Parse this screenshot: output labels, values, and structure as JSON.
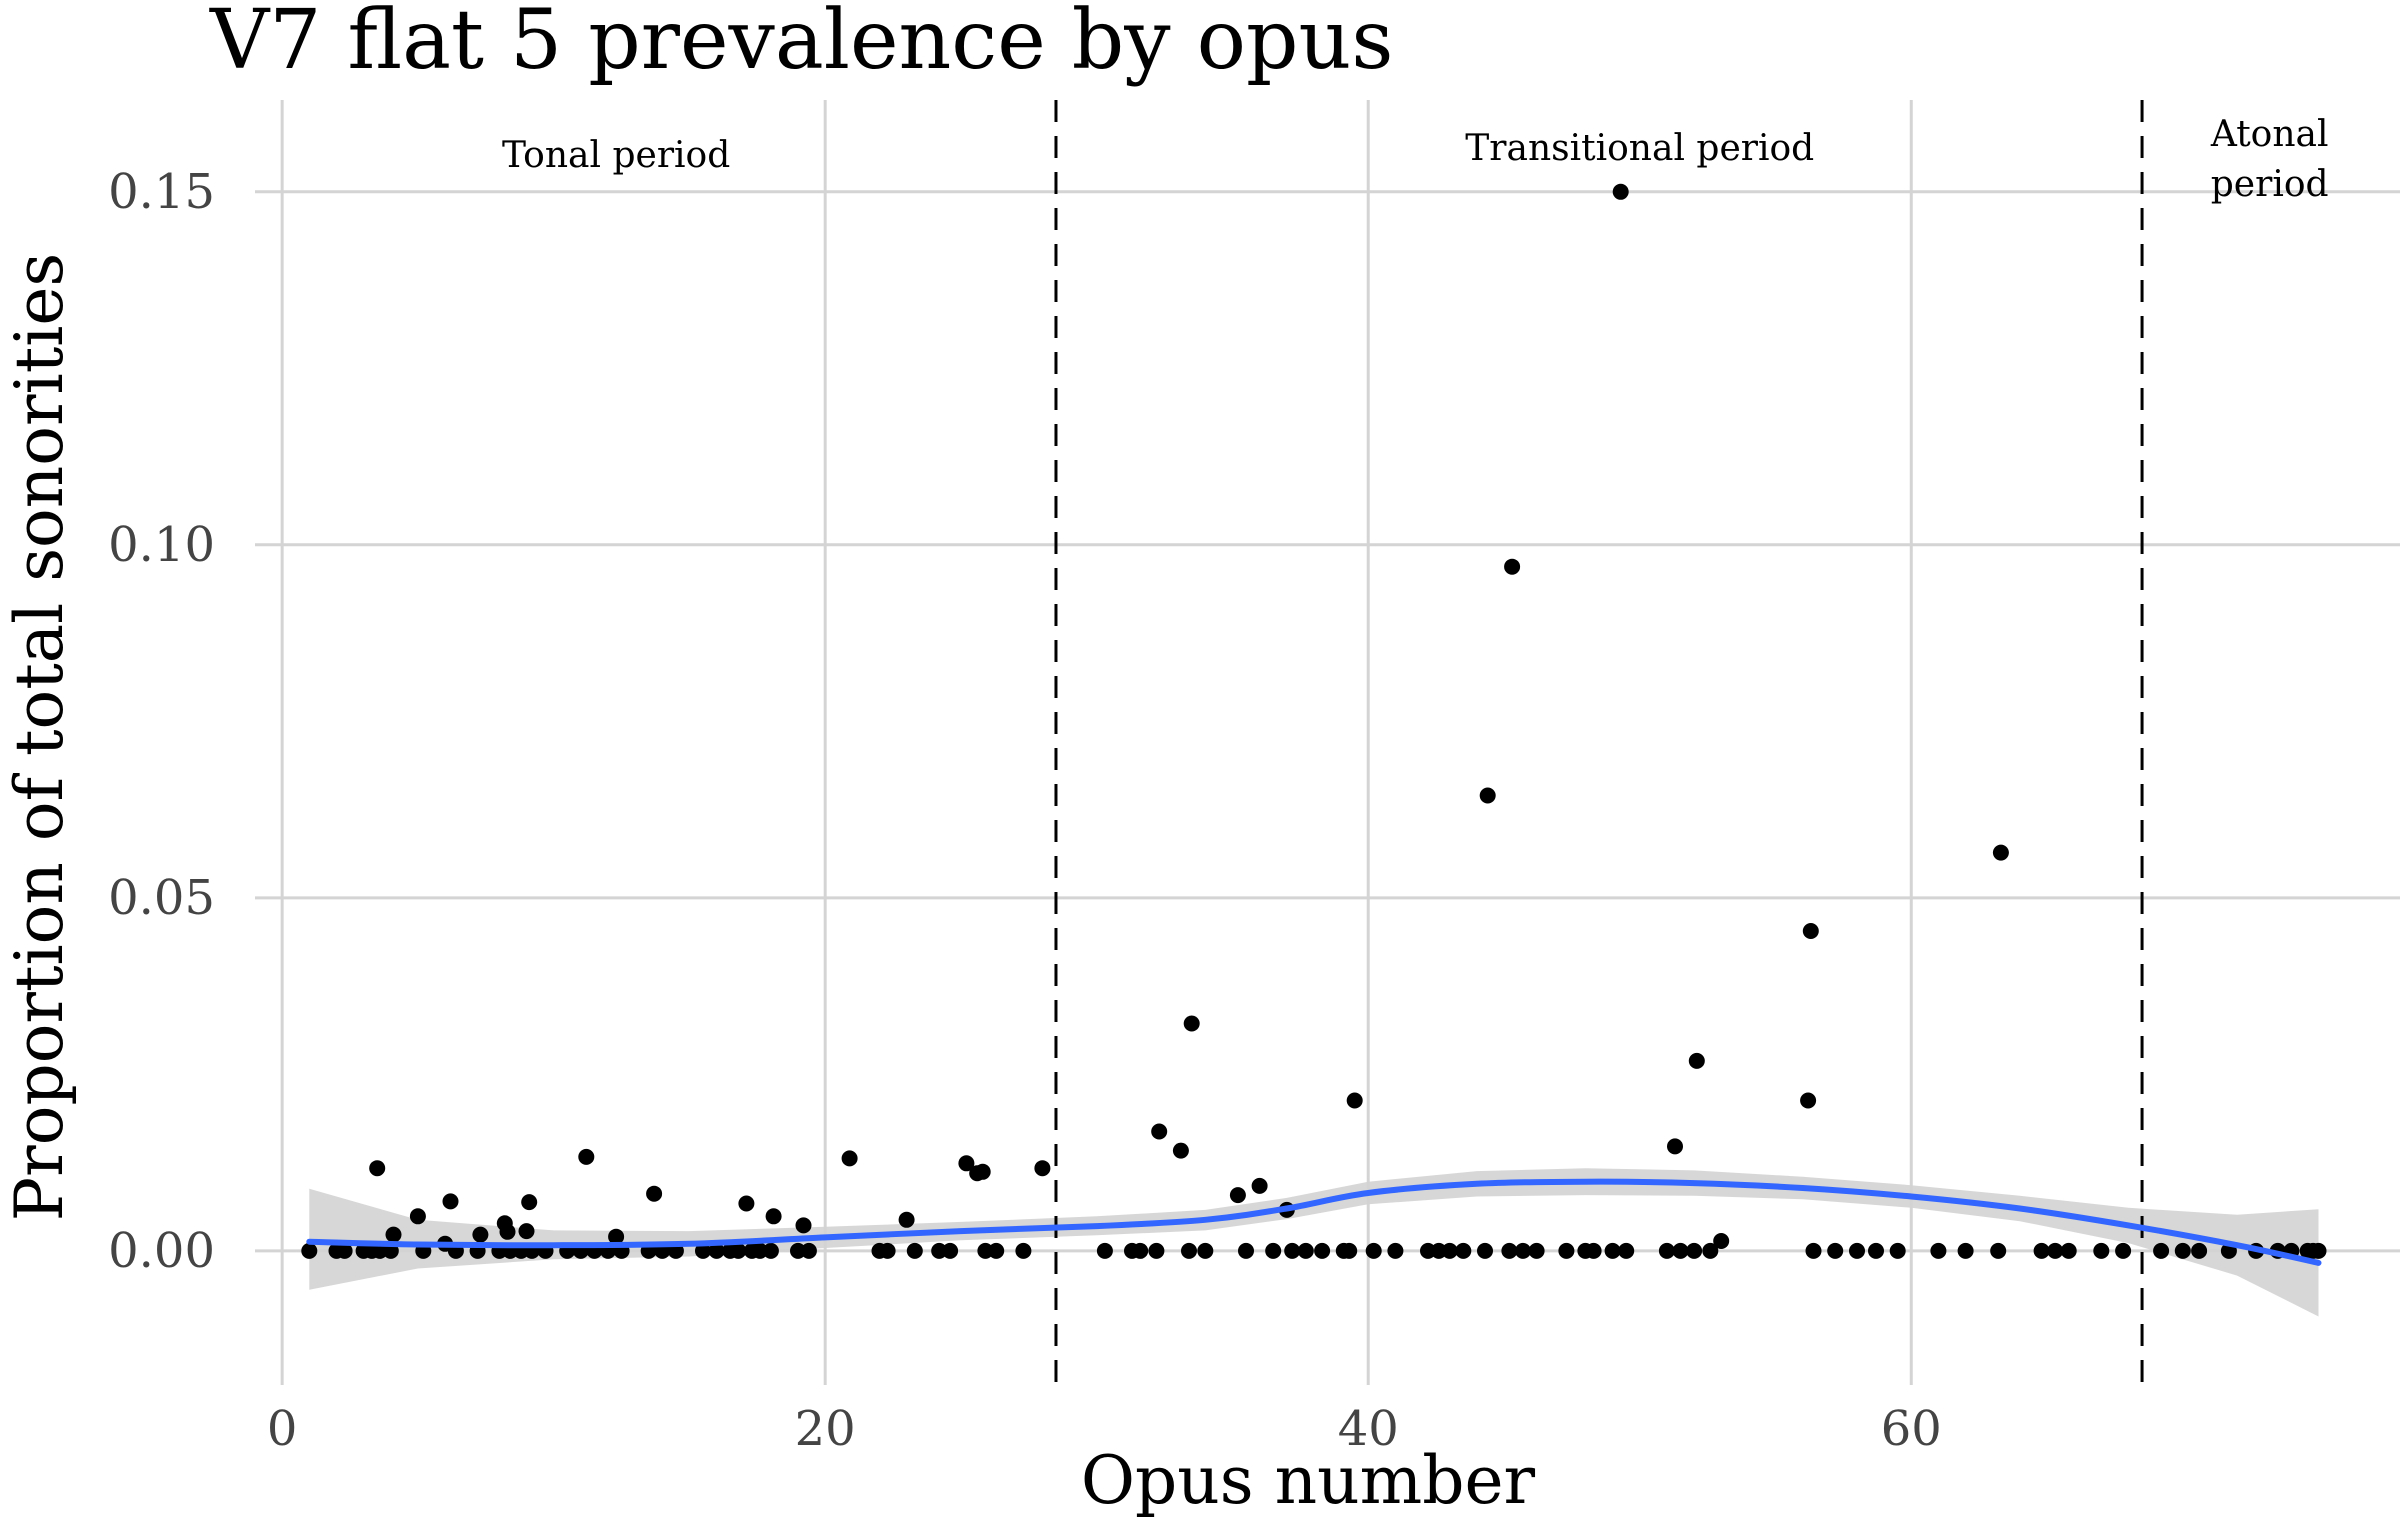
{
  "chart_data": {
    "type": "scatter",
    "title": "V7 flat 5 prevalence by opus",
    "xlabel": "Opus number",
    "ylabel": "Proportion of total sonorities",
    "xlim": [
      -1,
      78
    ],
    "ylim": [
      -0.019,
      0.163
    ],
    "x_ticks": [
      0,
      20,
      40,
      60
    ],
    "y_ticks": [
      0.0,
      0.05,
      0.1,
      0.15
    ],
    "y_tick_labels": [
      "0.00",
      "0.05",
      "0.10",
      "0.15"
    ],
    "grid": true,
    "period_boundaries": [
      28.5,
      68.5
    ],
    "period_labels": [
      {
        "lines": [
          "Tonal period"
        ],
        "x": 12.3,
        "y": 0.1535
      },
      {
        "lines": [
          "Transitional period"
        ],
        "x": 50.0,
        "y": 0.1545
      },
      {
        "lines": [
          "Atonal",
          "period"
        ],
        "x": 73.2,
        "y": 0.1565
      }
    ],
    "points": [
      {
        "x": 1.0,
        "y": 0.0
      },
      {
        "x": 2.0,
        "y": 0.0
      },
      {
        "x": 2.3,
        "y": 0.0
      },
      {
        "x": 3.0,
        "y": 0.0
      },
      {
        "x": 3.3,
        "y": 0.0
      },
      {
        "x": 3.5,
        "y": 0.0117
      },
      {
        "x": 3.6,
        "y": 0.0
      },
      {
        "x": 4.0,
        "y": 0.0
      },
      {
        "x": 4.1,
        "y": 0.0023
      },
      {
        "x": 5.0,
        "y": 0.0049
      },
      {
        "x": 5.2,
        "y": 0.0
      },
      {
        "x": 6.0,
        "y": 0.001
      },
      {
        "x": 6.2,
        "y": 0.007
      },
      {
        "x": 6.4,
        "y": 0.0
      },
      {
        "x": 7.2,
        "y": 0.0
      },
      {
        "x": 7.3,
        "y": 0.0023
      },
      {
        "x": 8.0,
        "y": 0.0
      },
      {
        "x": 8.2,
        "y": 0.0039
      },
      {
        "x": 8.3,
        "y": 0.0027
      },
      {
        "x": 8.4,
        "y": 0.0
      },
      {
        "x": 8.8,
        "y": 0.0
      },
      {
        "x": 9.0,
        "y": 0.0028
      },
      {
        "x": 9.1,
        "y": 0.0069
      },
      {
        "x": 9.2,
        "y": 0.0
      },
      {
        "x": 9.7,
        "y": 0.0
      },
      {
        "x": 10.5,
        "y": 0.0
      },
      {
        "x": 11.0,
        "y": 0.0
      },
      {
        "x": 11.2,
        "y": 0.0133
      },
      {
        "x": 11.5,
        "y": 0.0
      },
      {
        "x": 12.0,
        "y": 0.0
      },
      {
        "x": 12.3,
        "y": 0.002
      },
      {
        "x": 12.5,
        "y": 0.0
      },
      {
        "x": 13.5,
        "y": 0.0
      },
      {
        "x": 13.7,
        "y": 0.0081
      },
      {
        "x": 14.0,
        "y": 0.0
      },
      {
        "x": 14.5,
        "y": 0.0
      },
      {
        "x": 15.5,
        "y": 0.0
      },
      {
        "x": 16.0,
        "y": 0.0
      },
      {
        "x": 16.5,
        "y": 0.0
      },
      {
        "x": 16.8,
        "y": 0.0
      },
      {
        "x": 17.1,
        "y": 0.0067
      },
      {
        "x": 17.3,
        "y": 0.0
      },
      {
        "x": 17.6,
        "y": 0.0
      },
      {
        "x": 18.0,
        "y": 0.0
      },
      {
        "x": 18.1,
        "y": 0.0049
      },
      {
        "x": 19.0,
        "y": 0.0
      },
      {
        "x": 19.2,
        "y": 0.0036
      },
      {
        "x": 19.4,
        "y": 0.0
      },
      {
        "x": 20.9,
        "y": 0.0131
      },
      {
        "x": 22.0,
        "y": 0.0
      },
      {
        "x": 22.3,
        "y": 0.0
      },
      {
        "x": 23.0,
        "y": 0.0044
      },
      {
        "x": 23.3,
        "y": 0.0
      },
      {
        "x": 24.2,
        "y": 0.0
      },
      {
        "x": 24.6,
        "y": 0.0
      },
      {
        "x": 25.2,
        "y": 0.0124
      },
      {
        "x": 25.6,
        "y": 0.011
      },
      {
        "x": 25.8,
        "y": 0.0112
      },
      {
        "x": 25.9,
        "y": 0.0
      },
      {
        "x": 26.3,
        "y": 0.0
      },
      {
        "x": 27.3,
        "y": 0.0
      },
      {
        "x": 28.0,
        "y": 0.0117
      },
      {
        "x": 30.3,
        "y": 0.0
      },
      {
        "x": 31.3,
        "y": 0.0
      },
      {
        "x": 31.6,
        "y": 0.0
      },
      {
        "x": 32.2,
        "y": 0.0
      },
      {
        "x": 32.3,
        "y": 0.0169
      },
      {
        "x": 33.1,
        "y": 0.0142
      },
      {
        "x": 33.4,
        "y": 0.0
      },
      {
        "x": 33.5,
        "y": 0.0322
      },
      {
        "x": 34.0,
        "y": 0.0
      },
      {
        "x": 35.2,
        "y": 0.0079
      },
      {
        "x": 35.5,
        "y": 0.0
      },
      {
        "x": 36.0,
        "y": 0.0092
      },
      {
        "x": 36.5,
        "y": 0.0
      },
      {
        "x": 37.0,
        "y": 0.0058
      },
      {
        "x": 37.2,
        "y": 0.0
      },
      {
        "x": 37.7,
        "y": 0.0
      },
      {
        "x": 38.3,
        "y": 0.0
      },
      {
        "x": 39.1,
        "y": 0.0
      },
      {
        "x": 39.3,
        "y": 0.0
      },
      {
        "x": 39.5,
        "y": 0.0213
      },
      {
        "x": 40.2,
        "y": 0.0
      },
      {
        "x": 41.0,
        "y": 0.0
      },
      {
        "x": 42.2,
        "y": 0.0
      },
      {
        "x": 42.6,
        "y": 0.0
      },
      {
        "x": 43.0,
        "y": 0.0
      },
      {
        "x": 43.5,
        "y": 0.0
      },
      {
        "x": 44.3,
        "y": 0.0
      },
      {
        "x": 44.4,
        "y": 0.0645
      },
      {
        "x": 45.2,
        "y": 0.0
      },
      {
        "x": 45.3,
        "y": 0.0969
      },
      {
        "x": 45.7,
        "y": 0.0
      },
      {
        "x": 46.2,
        "y": 0.0
      },
      {
        "x": 47.3,
        "y": 0.0
      },
      {
        "x": 48.0,
        "y": 0.0
      },
      {
        "x": 48.3,
        "y": 0.0
      },
      {
        "x": 49.0,
        "y": 0.0
      },
      {
        "x": 49.3,
        "y": 0.15
      },
      {
        "x": 49.5,
        "y": 0.0
      },
      {
        "x": 51.0,
        "y": 0.0
      },
      {
        "x": 51.3,
        "y": 0.0148
      },
      {
        "x": 51.5,
        "y": 0.0
      },
      {
        "x": 52.0,
        "y": 0.0
      },
      {
        "x": 52.1,
        "y": 0.0269
      },
      {
        "x": 52.6,
        "y": 0.0
      },
      {
        "x": 53.0,
        "y": 0.0014
      },
      {
        "x": 56.2,
        "y": 0.0213
      },
      {
        "x": 56.3,
        "y": 0.0453
      },
      {
        "x": 56.4,
        "y": 0.0
      },
      {
        "x": 57.2,
        "y": 0.0
      },
      {
        "x": 58.0,
        "y": 0.0
      },
      {
        "x": 58.7,
        "y": 0.0
      },
      {
        "x": 59.5,
        "y": 0.0
      },
      {
        "x": 61.0,
        "y": 0.0
      },
      {
        "x": 62.0,
        "y": 0.0
      },
      {
        "x": 63.3,
        "y": 0.0564
      },
      {
        "x": 63.2,
        "y": 0.0
      },
      {
        "x": 64.8,
        "y": 0.0
      },
      {
        "x": 65.3,
        "y": 0.0
      },
      {
        "x": 65.8,
        "y": 0.0
      },
      {
        "x": 67.0,
        "y": 0.0
      },
      {
        "x": 67.8,
        "y": 0.0
      },
      {
        "x": 69.2,
        "y": 0.0
      },
      {
        "x": 70.0,
        "y": 0.0
      },
      {
        "x": 70.6,
        "y": 0.0
      },
      {
        "x": 71.7,
        "y": 0.0
      },
      {
        "x": 72.7,
        "y": 0.0
      },
      {
        "x": 73.5,
        "y": 0.0
      },
      {
        "x": 74.0,
        "y": 0.0
      },
      {
        "x": 74.6,
        "y": 0.0
      },
      {
        "x": 74.8,
        "y": 0.0
      },
      {
        "x": 75.0,
        "y": 0.0
      }
    ],
    "smooth": {
      "x": [
        1,
        5,
        10,
        15,
        20,
        25,
        30,
        34,
        37,
        40,
        44,
        48,
        52,
        56,
        60,
        64,
        68,
        72,
        75
      ],
      "y": [
        0.0013,
        0.0009,
        0.0008,
        0.001,
        0.0019,
        0.0028,
        0.0035,
        0.0044,
        0.006,
        0.0082,
        0.0095,
        0.0098,
        0.0096,
        0.0089,
        0.0077,
        0.006,
        0.0036,
        0.0008,
        -0.0017
      ],
      "ci_lower": [
        -0.0055,
        -0.0025,
        -0.0012,
        -0.0008,
        0.0004,
        0.0015,
        0.0022,
        0.0029,
        0.0045,
        0.0066,
        0.0077,
        0.0079,
        0.0078,
        0.0073,
        0.0061,
        0.0042,
        0.0011,
        -0.0035,
        -0.0093
      ],
      "ci_upper": [
        0.0088,
        0.0044,
        0.0029,
        0.0028,
        0.0034,
        0.0041,
        0.0049,
        0.0058,
        0.0075,
        0.0098,
        0.0113,
        0.0117,
        0.0114,
        0.0105,
        0.0093,
        0.0078,
        0.0061,
        0.0051,
        0.0059
      ]
    },
    "colors": {
      "points": "#000000",
      "smooth_line": "#3366FF",
      "ribbon": "#d3d3d3",
      "grid": "#d4d4d4",
      "boundary": "#000000"
    }
  }
}
